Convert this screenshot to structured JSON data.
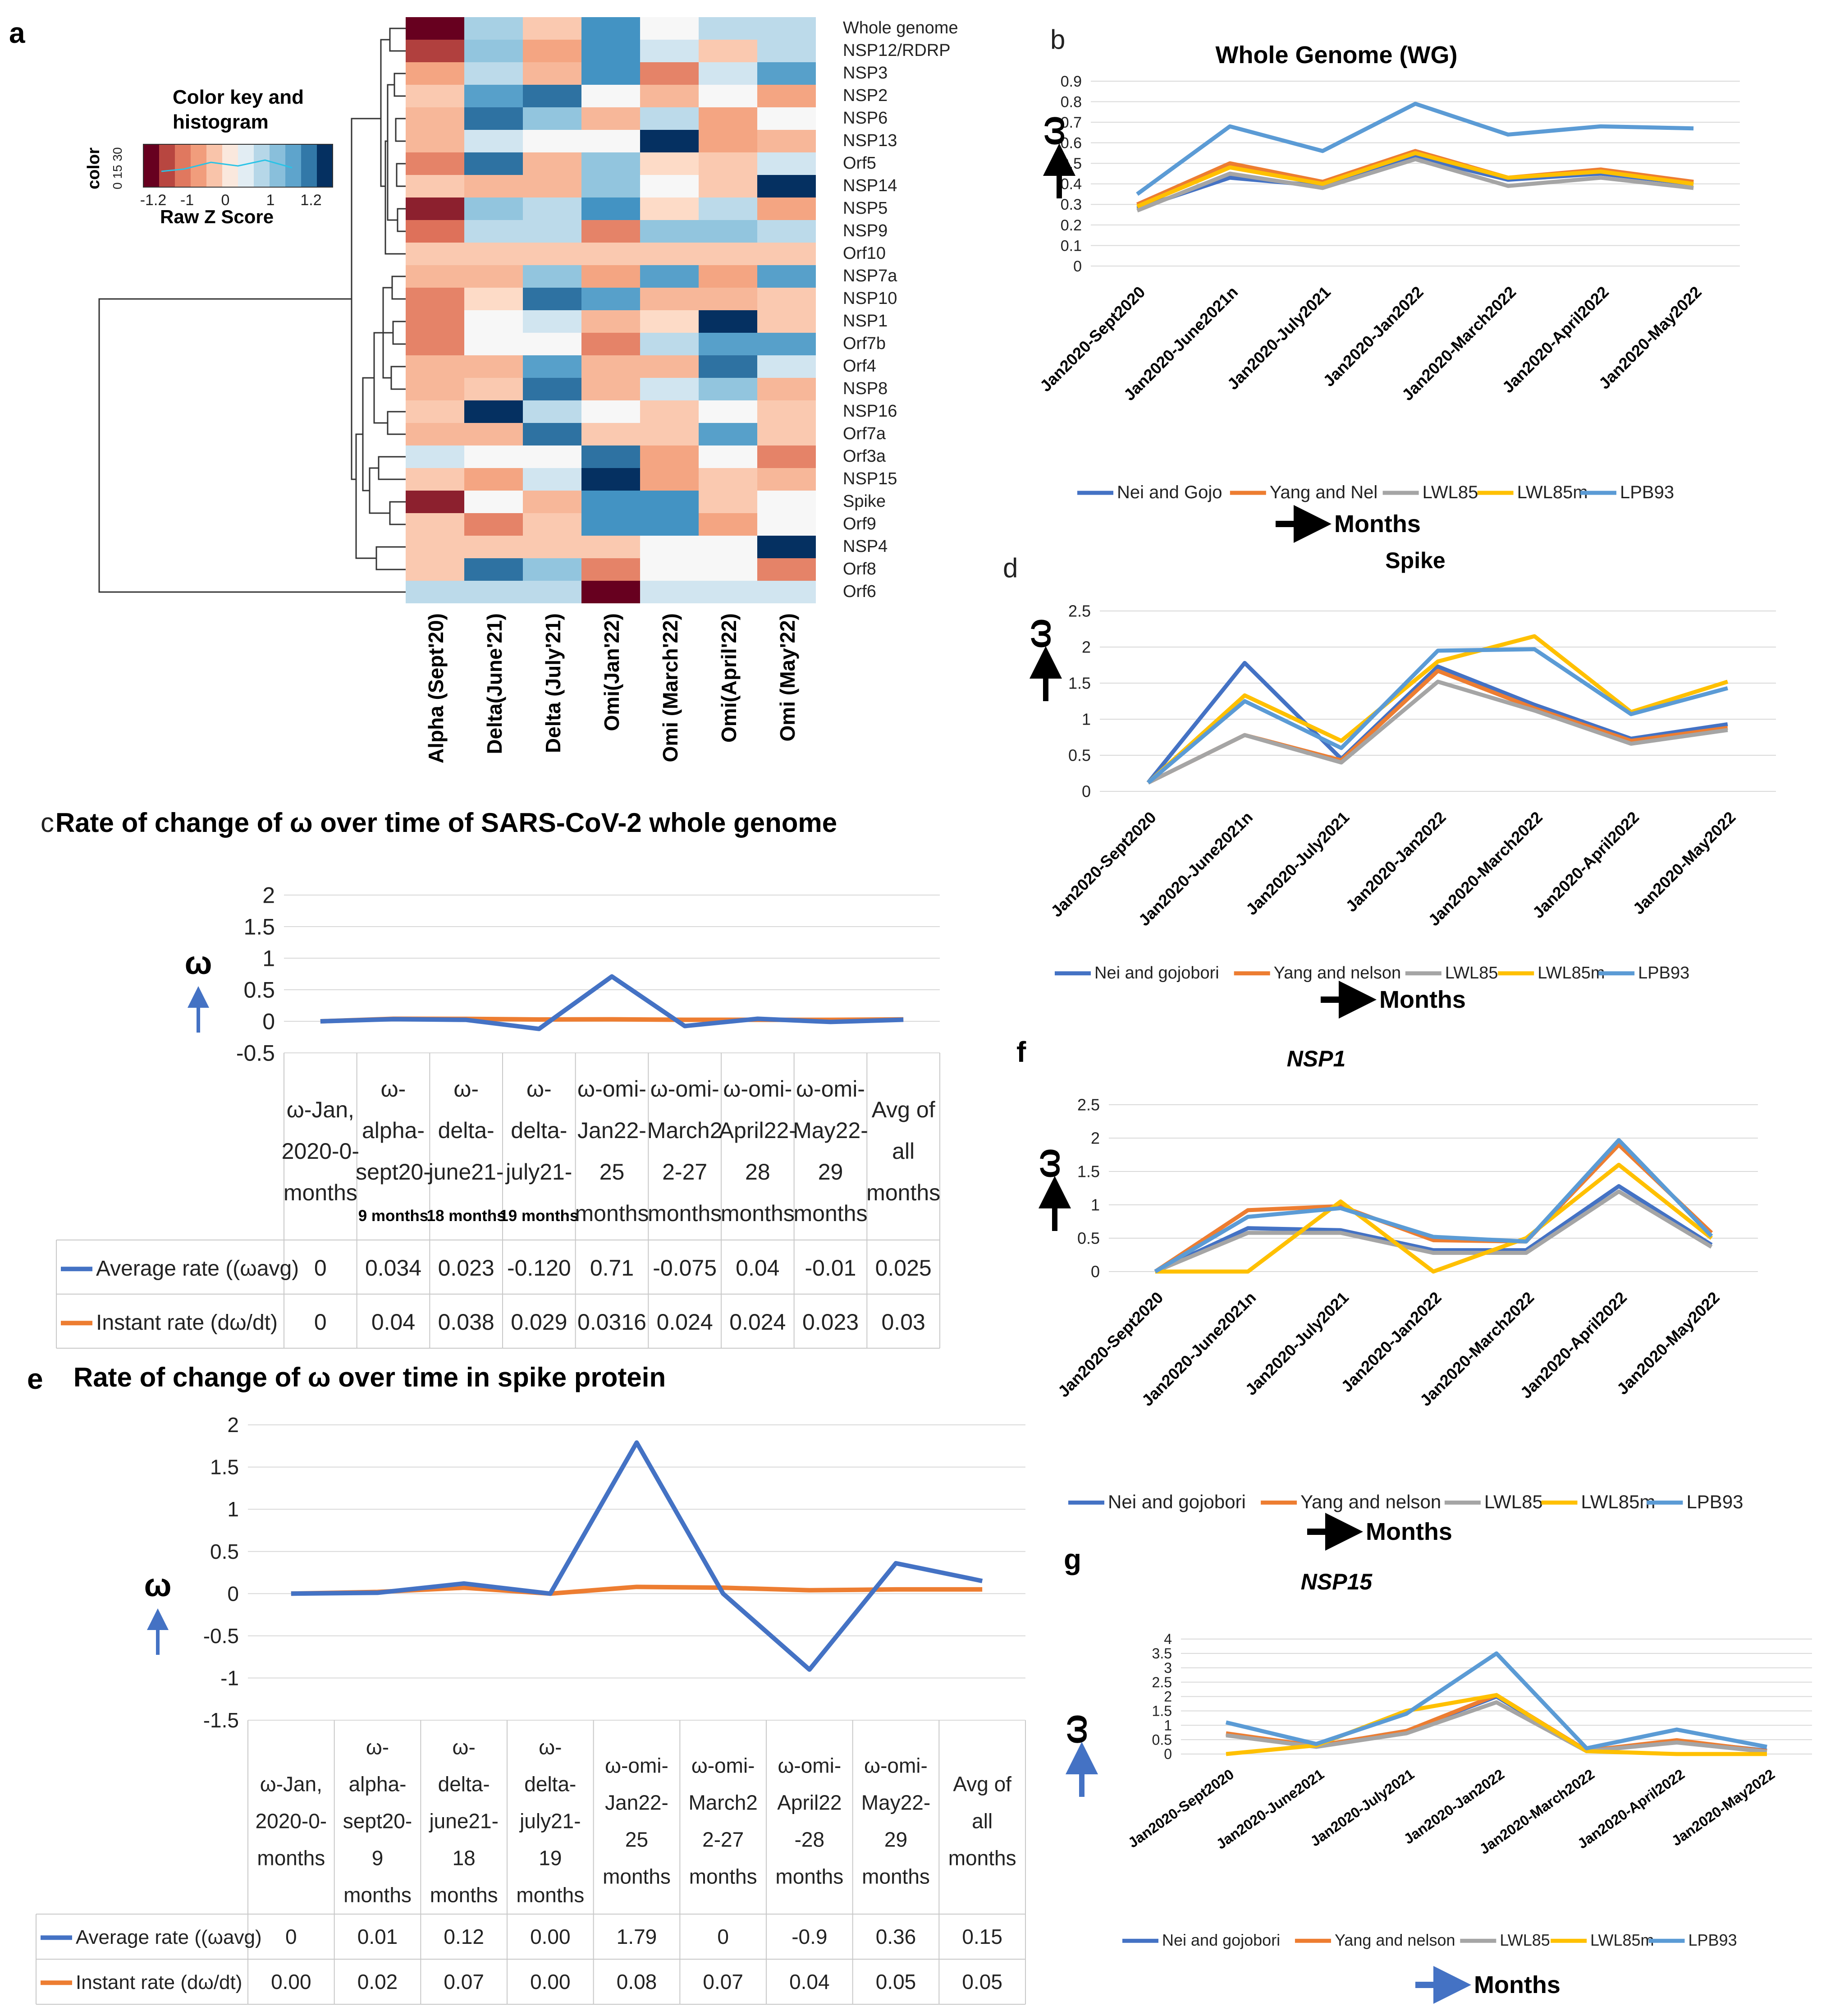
{
  "panel_labels": {
    "a": "a",
    "b": "b",
    "c": "c",
    "d": "d",
    "e": "e",
    "f": "f",
    "g": "g"
  },
  "colors": {
    "nei": "#4472C4",
    "yang": "#ED7D31",
    "lwl85": "#A5A5A5",
    "lwl85m": "#FFC000",
    "lpb93": "#5B9BD5",
    "avg": "#4472C4",
    "inst": "#ED7D31",
    "grid": "#d9d9d9"
  },
  "heatmap": {
    "color_key_title_1": "Color key and",
    "color_key_title_2": "histogram",
    "color_key_axis": "color",
    "color_key_counts": "0 15 30",
    "color_key_ticks": [
      "-1.2",
      "-1",
      "0",
      "1",
      "1.2"
    ],
    "color_key_label": "Raw Z Score",
    "rows": [
      "Whole genome",
      "NSP12/RDRP",
      "NSP3",
      "NSP2",
      "NSP6",
      "NSP13",
      "Orf5",
      "NSP14",
      "NSP5",
      "NSP9",
      "Orf10",
      "NSP7a",
      "NSP10",
      "NSP1",
      "Orf7b",
      "Orf4",
      "NSP8",
      "NSP16",
      "Orf7a",
      "Orf3a",
      "NSP15",
      "Spike",
      "Orf9",
      "NSP4",
      "Orf8",
      "Orf6"
    ],
    "columns": [
      "Alpha (Sept'20)",
      "Delta(June'21)",
      "Delta (July'21)",
      "Omi(Jan'22)",
      "Omi (March'22)",
      "Omi(April'22)",
      "Omi (May'22)"
    ],
    "z": [
      [
        -1.2,
        0.4,
        -0.3,
        0.9,
        0.0,
        0.3,
        0.3
      ],
      [
        -1.0,
        0.5,
        -0.5,
        0.9,
        0.2,
        -0.3,
        0.3
      ],
      [
        -0.5,
        0.3,
        -0.4,
        0.9,
        -0.7,
        0.2,
        0.8
      ],
      [
        -0.3,
        0.8,
        1.0,
        0.0,
        -0.4,
        0.0,
        -0.5
      ],
      [
        -0.4,
        1.0,
        0.5,
        -0.4,
        0.3,
        -0.5,
        0.0
      ],
      [
        -0.4,
        0.2,
        0.0,
        0.0,
        1.2,
        -0.5,
        -0.4
      ],
      [
        -0.7,
        1.0,
        -0.4,
        0.5,
        -0.2,
        -0.3,
        0.2
      ],
      [
        -0.3,
        -0.4,
        -0.4,
        0.5,
        0.0,
        -0.3,
        1.2
      ],
      [
        -1.1,
        0.5,
        0.3,
        0.9,
        -0.2,
        0.3,
        -0.5
      ],
      [
        -0.8,
        0.3,
        0.3,
        -0.7,
        0.5,
        0.5,
        0.3
      ],
      [
        -0.3,
        -0.3,
        -0.3,
        -0.3,
        -0.3,
        -0.3,
        -0.3
      ],
      [
        -0.4,
        -0.4,
        0.5,
        -0.5,
        0.8,
        -0.5,
        0.8
      ],
      [
        -0.7,
        -0.2,
        1.0,
        0.8,
        -0.4,
        -0.4,
        -0.3
      ],
      [
        -0.7,
        0.0,
        0.2,
        -0.4,
        -0.2,
        1.2,
        -0.3
      ],
      [
        -0.7,
        0.0,
        0.0,
        -0.7,
        0.3,
        0.8,
        0.8
      ],
      [
        -0.4,
        -0.4,
        0.8,
        -0.4,
        -0.4,
        1.0,
        0.2
      ],
      [
        -0.4,
        -0.3,
        1.0,
        -0.4,
        0.2,
        0.5,
        -0.4
      ],
      [
        -0.3,
        1.2,
        0.3,
        0.0,
        -0.3,
        0.0,
        -0.3
      ],
      [
        -0.4,
        -0.4,
        1.0,
        -0.3,
        -0.3,
        0.8,
        -0.3
      ],
      [
        0.2,
        0.0,
        0.0,
        1.0,
        -0.5,
        0.0,
        -0.7
      ],
      [
        -0.3,
        -0.5,
        0.2,
        1.2,
        -0.5,
        -0.3,
        -0.4
      ],
      [
        -1.1,
        0.0,
        -0.4,
        0.9,
        0.9,
        -0.3,
        0.0
      ],
      [
        -0.3,
        -0.7,
        -0.3,
        0.9,
        0.9,
        -0.5,
        0.0
      ],
      [
        -0.3,
        -0.3,
        -0.3,
        -0.3,
        0.0,
        0.0,
        1.2
      ],
      [
        -0.3,
        1.0,
        0.5,
        -0.7,
        0.0,
        0.0,
        -0.7
      ],
      [
        0.3,
        0.3,
        0.3,
        -1.2,
        0.2,
        0.2,
        0.2
      ]
    ]
  },
  "chart_data": [
    {
      "id": "b",
      "type": "line",
      "title": "Whole Genome (WG)",
      "xlabel": "Months",
      "ylabel": "ω",
      "categories": [
        "Jan2020-Sept2020",
        "Jan2020-June2021n",
        "Jan2020-July2021",
        "Jan2020-Jan2022",
        "Jan2020-March2022",
        "Jan2020-April2022",
        "Jan2020-May2022"
      ],
      "yticks": [
        "0",
        "0.1",
        "0.2",
        "0.3",
        "0.4",
        "0.5",
        "0.6",
        "0.7",
        "0.8",
        "0.9"
      ],
      "ylim": [
        0,
        0.9
      ],
      "series": [
        {
          "name": "Nei and Gojo",
          "key": "nei",
          "values": [
            0.28,
            0.43,
            0.39,
            0.53,
            0.42,
            0.45,
            0.4
          ]
        },
        {
          "name": "Yang and Nel",
          "key": "yang",
          "values": [
            0.3,
            0.5,
            0.41,
            0.56,
            0.43,
            0.47,
            0.41
          ]
        },
        {
          "name": "LWL85",
          "key": "lwl85",
          "values": [
            0.27,
            0.45,
            0.38,
            0.52,
            0.39,
            0.43,
            0.38
          ]
        },
        {
          "name": "LWL85m",
          "key": "lwl85m",
          "values": [
            0.29,
            0.48,
            0.4,
            0.55,
            0.43,
            0.46,
            0.4
          ]
        },
        {
          "name": "LPB93",
          "key": "lpb93",
          "values": [
            0.35,
            0.68,
            0.56,
            0.79,
            0.64,
            0.68,
            0.67
          ]
        }
      ]
    },
    {
      "id": "d",
      "type": "line",
      "title": "Spike",
      "xlabel": "Months",
      "ylabel": "ω",
      "categories": [
        "Jan2020-Sept2020",
        "Jan2020-June2021n",
        "Jan2020-July2021",
        "Jan2020-Jan2022",
        "Jan2020-March2022",
        "Jan2020-April2022",
        "Jan2020-May2022"
      ],
      "yticks": [
        "0",
        "0.5",
        "1",
        "1.5",
        "2",
        "2.5"
      ],
      "ylim": [
        0,
        2.5
      ],
      "series": [
        {
          "name": "Nei and gojobori",
          "key": "nei",
          "values": [
            0.12,
            1.78,
            0.45,
            1.73,
            1.2,
            0.73,
            0.93
          ]
        },
        {
          "name": "Yang and nelson",
          "key": "yang",
          "values": [
            0.12,
            0.78,
            0.43,
            1.67,
            1.15,
            0.7,
            0.88
          ]
        },
        {
          "name": "LWL85",
          "key": "lwl85",
          "values": [
            0.12,
            0.78,
            0.4,
            1.52,
            1.12,
            0.66,
            0.85
          ]
        },
        {
          "name": "LWL85m",
          "key": "lwl85m",
          "values": [
            0.12,
            1.33,
            0.7,
            1.8,
            2.15,
            1.1,
            1.52
          ]
        },
        {
          "name": "LPB93",
          "key": "lpb93",
          "values": [
            0.12,
            1.25,
            0.6,
            1.95,
            1.97,
            1.07,
            1.43
          ]
        }
      ]
    },
    {
      "id": "f",
      "type": "line",
      "title": "NSP1",
      "xlabel": "Months",
      "ylabel": "ω",
      "categories": [
        "Jan2020-Sept2020",
        "Jan2020-June2021n",
        "Jan2020-July2021",
        "Jan2020-Jan2022",
        "Jan2020-March2022",
        "Jan2020-April2022",
        "Jan2020-May2022"
      ],
      "yticks": [
        "0",
        "0.5",
        "1",
        "1.5",
        "2",
        "2.5"
      ],
      "ylim": [
        0,
        2.5
      ],
      "series": [
        {
          "name": "Nei and gojobori",
          "key": "nei",
          "values": [
            0,
            0.65,
            0.62,
            0.32,
            0.32,
            1.28,
            0.4
          ]
        },
        {
          "name": "Yang and nelson",
          "key": "yang",
          "values": [
            0,
            0.92,
            0.98,
            0.47,
            0.45,
            1.9,
            0.58
          ]
        },
        {
          "name": "LWL85",
          "key": "lwl85",
          "values": [
            0,
            0.58,
            0.58,
            0.28,
            0.28,
            1.2,
            0.37
          ]
        },
        {
          "name": "LWL85m",
          "key": "lwl85m",
          "values": [
            0,
            0,
            1.05,
            0,
            0.5,
            1.6,
            0.5
          ]
        },
        {
          "name": "LPB93",
          "key": "lpb93",
          "values": [
            0,
            0.82,
            0.95,
            0.52,
            0.45,
            1.97,
            0.53
          ]
        }
      ]
    },
    {
      "id": "g",
      "type": "line",
      "title": "NSP15",
      "xlabel": "Months",
      "ylabel": "ω",
      "categories": [
        "Jan2020-Sept2020",
        "Jan2020-June2021",
        "Jan2020-July2021",
        "Jan2020-Jan2022",
        "Jan2020-March2022",
        "Jan2020-April2022",
        "Jan2020-May2022"
      ],
      "yticks": [
        "0",
        "0.5",
        "1",
        "1.5",
        "2",
        "2.5",
        "3",
        "3.5",
        "4"
      ],
      "ylim": [
        0,
        4
      ],
      "series": [
        {
          "name": "Nei and gojobori",
          "key": "nei",
          "values": [
            0.7,
            0.28,
            0.8,
            2.0,
            0.12,
            0.45,
            0.12
          ]
        },
        {
          "name": "Yang and nelson",
          "key": "yang",
          "values": [
            0.72,
            0.28,
            0.8,
            2.05,
            0.12,
            0.48,
            0.1
          ]
        },
        {
          "name": "LWL85",
          "key": "lwl85",
          "values": [
            0.65,
            0.25,
            0.72,
            1.8,
            0.1,
            0.4,
            0.08
          ]
        },
        {
          "name": "LWL85m",
          "key": "lwl85m",
          "values": [
            0,
            0.3,
            1.5,
            2.05,
            0.1,
            0,
            0
          ]
        },
        {
          "name": "LPB93",
          "key": "lpb93",
          "values": [
            1.1,
            0.35,
            1.4,
            3.5,
            0.2,
            0.85,
            0.25
          ]
        }
      ]
    },
    {
      "id": "c",
      "type": "line",
      "title": "Rate of change of ω over time of SARS-CoV-2 whole genome",
      "ylabel": "ω",
      "yticks": [
        "-0.5",
        "0",
        "0.5",
        "1",
        "1.5",
        "2"
      ],
      "ylim": [
        -0.5,
        2
      ],
      "columns": [
        [
          "ω-Jan,",
          "2020-0-",
          "months"
        ],
        [
          "ω-",
          "alpha-",
          "sept20-",
          "9 months"
        ],
        [
          "ω-",
          "delta-",
          "june21-",
          "18 months"
        ],
        [
          "ω-",
          "delta-",
          "july21-",
          "19 months"
        ],
        [
          "ω-omi-",
          "Jan22-",
          "25",
          "months"
        ],
        [
          "ω-omi-",
          "March2",
          "2-27",
          "months"
        ],
        [
          "ω-omi-",
          "April22-",
          "28",
          "months"
        ],
        [
          "ω-omi-",
          "May22-",
          "29",
          "months"
        ],
        [
          "Avg of",
          "all",
          "months"
        ]
      ],
      "series": [
        {
          "name": "Average rate ((ωavg)",
          "key": "avg",
          "values": [
            0,
            0.034,
            0.023,
            -0.12,
            0.71,
            -0.075,
            0.04,
            -0.01,
            0.025
          ],
          "labels": [
            "0",
            "0.034",
            "0.023",
            "-0.120",
            "0.71",
            "-0.075",
            "0.04",
            "-0.01",
            "0.025"
          ]
        },
        {
          "name": "Instant rate (dω/dt)",
          "key": "inst",
          "values": [
            0,
            0.04,
            0.038,
            0.029,
            0.0316,
            0.024,
            0.024,
            0.023,
            0.03
          ],
          "labels": [
            "0",
            "0.04",
            "0.038",
            "0.029",
            "0.0316",
            "0.024",
            "0.024",
            "0.023",
            "0.03"
          ]
        }
      ]
    },
    {
      "id": "e",
      "type": "line",
      "title": "Rate of change of ω over time in spike protein",
      "ylabel": "ω",
      "yticks": [
        "-1.5",
        "-1",
        "-0.5",
        "0",
        "0.5",
        "1",
        "1.5",
        "2"
      ],
      "ylim": [
        -1.5,
        2
      ],
      "columns": [
        [
          "ω-Jan,",
          "2020-0-",
          "months"
        ],
        [
          "ω-",
          "alpha-",
          "sept20-",
          "9",
          "months"
        ],
        [
          "ω-",
          "delta-",
          "june21-",
          "18",
          "months"
        ],
        [
          "ω-",
          "delta-",
          "july21-",
          "19",
          "months"
        ],
        [
          "ω-omi-",
          "Jan22-",
          "25",
          "months"
        ],
        [
          "ω-omi-",
          "March2",
          "2-27",
          "months"
        ],
        [
          "ω-omi-",
          "April22",
          "-28",
          "months"
        ],
        [
          "ω-omi-",
          "May22-",
          "29",
          "months"
        ],
        [
          "Avg of",
          "all",
          "months"
        ]
      ],
      "series": [
        {
          "name": "Average rate ((ωavg)",
          "key": "avg",
          "values": [
            0,
            0.01,
            0.12,
            0,
            1.79,
            0,
            -0.9,
            0.36,
            0.15
          ],
          "labels": [
            "0",
            "0.01",
            "0.12",
            "0.00",
            "1.79",
            "0",
            "-0.9",
            "0.36",
            "0.15"
          ]
        },
        {
          "name": "Instant rate (dω/dt)",
          "key": "inst",
          "values": [
            0,
            0.02,
            0.07,
            0,
            0.08,
            0.07,
            0.04,
            0.05,
            0.05
          ],
          "labels": [
            "0.00",
            "0.02",
            "0.07",
            "0.00",
            "0.08",
            "0.07",
            "0.04",
            "0.05",
            "0.05"
          ]
        }
      ]
    }
  ]
}
